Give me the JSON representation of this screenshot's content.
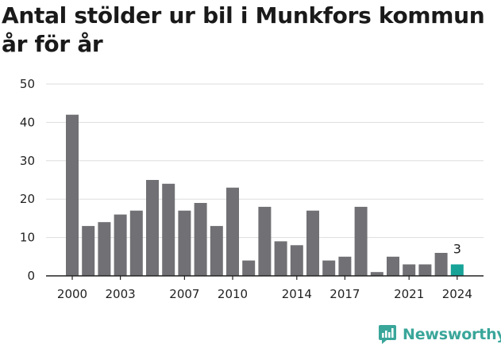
{
  "title": "Antal stölder ur bil i Munkfors kommun år för år",
  "brand": {
    "name": "Newsworthy",
    "icon": "newsworthy-logo-icon",
    "color": "#3aa69a"
  },
  "chart_data": {
    "type": "bar",
    "title": "Antal stölder ur bil i Munkfors kommun år för år",
    "xlabel": "",
    "ylabel": "",
    "categories": [
      2000,
      2001,
      2002,
      2003,
      2004,
      2005,
      2006,
      2007,
      2008,
      2009,
      2010,
      2011,
      2012,
      2013,
      2014,
      2015,
      2016,
      2017,
      2018,
      2019,
      2020,
      2021,
      2022,
      2023,
      2024
    ],
    "values": [
      42,
      13,
      14,
      16,
      17,
      25,
      24,
      17,
      19,
      13,
      23,
      4,
      18,
      9,
      8,
      17,
      4,
      5,
      18,
      1,
      5,
      3,
      3,
      6,
      3
    ],
    "x_tick_labels": [
      "2000",
      "2003",
      "2007",
      "2010",
      "2014",
      "2017",
      "2021",
      "2024"
    ],
    "y_ticks": [
      0,
      10,
      20,
      30,
      40,
      50
    ],
    "ylim": [
      0,
      50
    ],
    "grid": true,
    "legend": "none",
    "colors": {
      "bar": "#717075",
      "highlight": "#17a398",
      "grid": "#dddddd",
      "axis": "#222222"
    },
    "highlight": {
      "category": 2024,
      "label": "3"
    }
  }
}
